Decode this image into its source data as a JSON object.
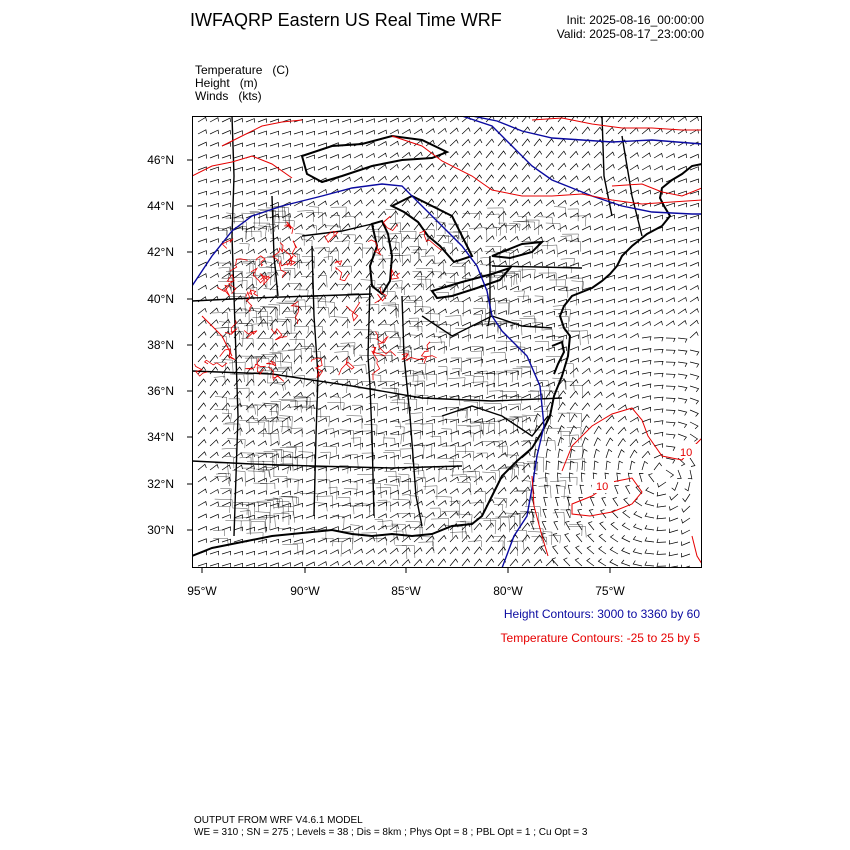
{
  "header": {
    "title": "IWFAQRP Eastern US Real Time WRF",
    "init": "Init: 2025-08-16_00:00:00",
    "valid": "Valid: 2025-08-17_23:00:00"
  },
  "fields": [
    "Temperature   (C)",
    "Height   (m)",
    "Winds   (kts)"
  ],
  "map": {
    "lat_labels": [
      "46°N",
      "44°N",
      "42°N",
      "40°N",
      "38°N",
      "36°N",
      "34°N",
      "32°N",
      "30°N"
    ],
    "lon_labels": [
      "95°W",
      "90°W",
      "85°W",
      "80°W",
      "75°W"
    ],
    "contour_labels": [
      "10",
      "10"
    ],
    "colors": {
      "height": "#0a0aa0",
      "temperature": "#e60000",
      "land": "#000000"
    }
  },
  "legend": {
    "height": "Height Contours: 3000 to 3360 by 60",
    "temperature": "Temperature Contours: -25 to 25 by 5"
  },
  "footer": {
    "line1": "OUTPUT FROM WRF V4.6.1 MODEL",
    "line2": "WE = 310 ; SN = 275 ; Levels = 38 ; Dis = 8km ; Phys Opt = 8 ; PBL Opt = 1 ; Cu Opt = 3"
  }
}
